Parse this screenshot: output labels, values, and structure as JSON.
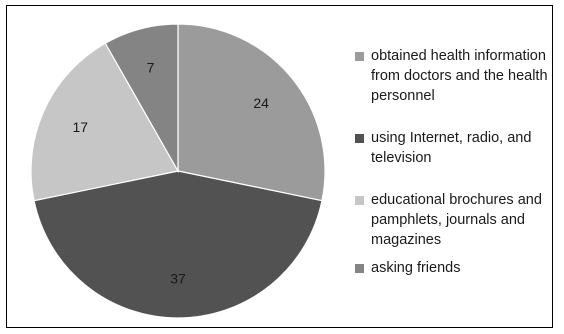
{
  "chart_data": {
    "type": "pie",
    "title": "",
    "categories": [
      "obtained health information from doctors and the health personnel",
      "using Internet, radio, and television",
      "educational brochures and pamphlets, journals and magazines",
      "asking friends"
    ],
    "values": [
      24,
      37,
      17,
      7
    ],
    "colors": [
      "#9b9b9b",
      "#525252",
      "#c6c6c6",
      "#848484"
    ],
    "legend_position": "right"
  }
}
